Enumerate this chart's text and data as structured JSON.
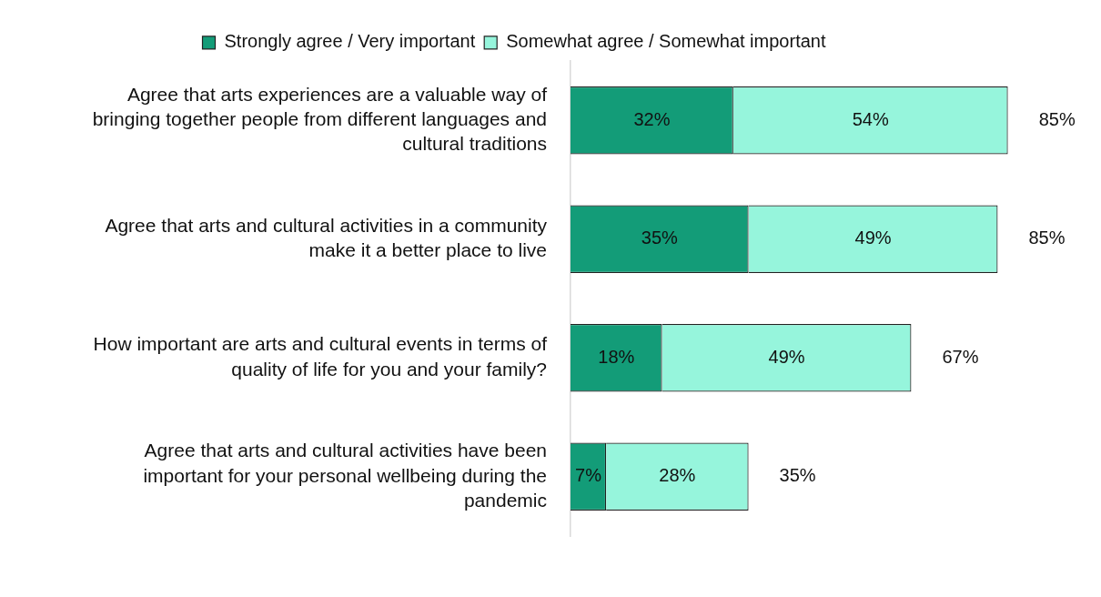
{
  "chart_data": {
    "type": "bar",
    "orientation": "horizontal",
    "stacked": true,
    "legend": "top",
    "tick_labels": "y",
    "grid": false,
    "categories": [
      "Agree that arts experiences are a valuable way of bringing together people from different languages and cultural traditions",
      "Agree that arts and cultural activities in a community make it a better place to live",
      "How important are arts and cultural events in terms of quality of life for you and your family?",
      "Agree that arts and cultural activities have been important for your personal wellbeing during the pandemic"
    ],
    "series": [
      {
        "name": "Strongly agree / Very important",
        "color": "#139c78",
        "values": [
          32,
          35,
          18,
          7
        ],
        "value_labels": [
          "32%",
          "35%",
          "18%",
          "7%"
        ]
      },
      {
        "name": "Somewhat agree / Somewhat important",
        "color": "#96f5dc",
        "values": [
          54,
          49,
          49,
          28
        ],
        "value_labels": [
          "54%",
          "49%",
          "49%",
          "28%"
        ]
      }
    ],
    "totals": [
      "85%",
      "85%",
      "67%",
      "35%"
    ]
  }
}
